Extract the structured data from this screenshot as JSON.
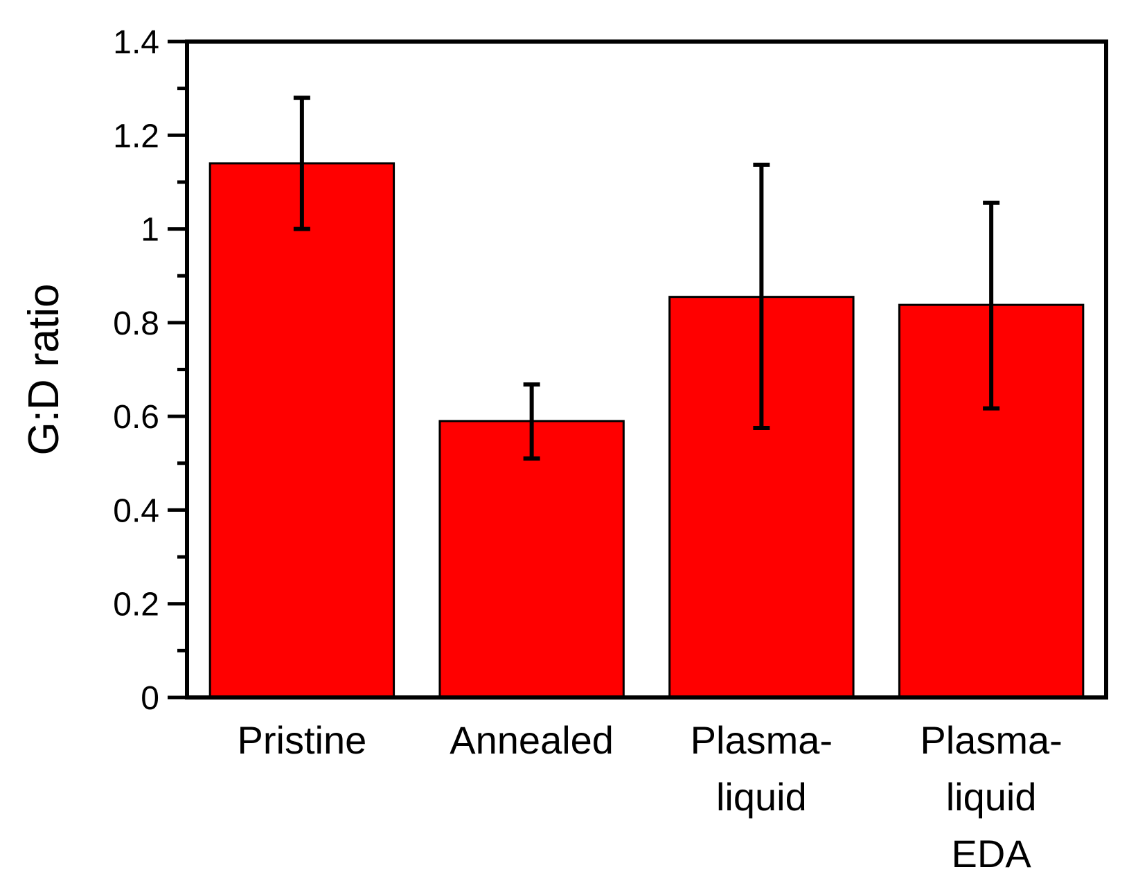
{
  "chart_data": {
    "type": "bar",
    "title": "",
    "xlabel": "",
    "ylabel": "G:D ratio",
    "ylim": [
      0,
      1.4
    ],
    "yticks": [
      "0",
      "0.2",
      "0.4",
      "0.6",
      "0.8",
      "1",
      "1.2",
      "1.4"
    ],
    "grid": false,
    "bar_color": "#ff0000",
    "categories": [
      [
        "Pristine"
      ],
      [
        "Annealed"
      ],
      [
        "Plasma-",
        "liquid"
      ],
      [
        "Plasma-",
        "liquid",
        "EDA"
      ]
    ],
    "values": [
      1.14,
      0.59,
      0.855,
      0.838
    ],
    "error_low": [
      1.0,
      0.51,
      0.575,
      0.617
    ],
    "error_high": [
      1.28,
      0.668,
      1.137,
      1.056
    ]
  }
}
